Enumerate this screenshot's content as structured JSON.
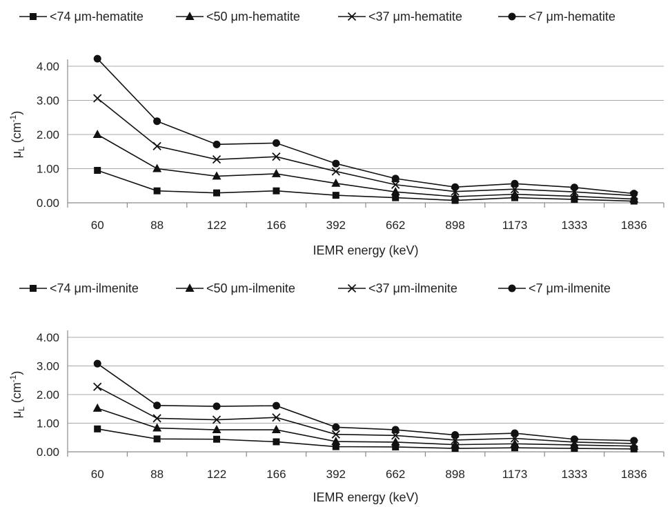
{
  "chart_data": [
    {
      "type": "line",
      "categories": [
        "60",
        "88",
        "122",
        "166",
        "392",
        "662",
        "898",
        "1173",
        "1333",
        "1836"
      ],
      "xlabel": "IEMR energy (keV)",
      "ylabel": "μL (cm-1)",
      "ylabel_main": "μ",
      "ylabel_sub": "L",
      "ylabel_rest": " (cm",
      "ylabel_sup": "-1",
      "ylabel_end": ")",
      "ylim": [
        0,
        4
      ],
      "yticks": [
        "0.00",
        "1.00",
        "2.00",
        "3.00",
        "4.00"
      ],
      "grid": true,
      "legend_position": "top",
      "series": [
        {
          "name": "<74 μm-hematite",
          "marker": "square",
          "values": [
            0.95,
            0.35,
            0.29,
            0.35,
            0.22,
            0.15,
            0.07,
            0.15,
            0.1,
            0.05
          ]
        },
        {
          "name": "<50 μm-hematite",
          "marker": "triangle",
          "values": [
            2.0,
            1.0,
            0.78,
            0.85,
            0.57,
            0.32,
            0.18,
            0.25,
            0.19,
            0.11
          ]
        },
        {
          "name": "<37 μm-hematite",
          "marker": "cross",
          "values": [
            3.06,
            1.66,
            1.27,
            1.35,
            0.92,
            0.53,
            0.33,
            0.4,
            0.32,
            0.21
          ]
        },
        {
          "name": "<7 μm-hematite",
          "marker": "circle",
          "values": [
            4.22,
            2.39,
            1.71,
            1.75,
            1.15,
            0.71,
            0.46,
            0.56,
            0.45,
            0.27
          ]
        }
      ]
    },
    {
      "type": "line",
      "categories": [
        "60",
        "88",
        "122",
        "166",
        "392",
        "662",
        "898",
        "1173",
        "1333",
        "1836"
      ],
      "xlabel": "IEMR energy (keV)",
      "ylabel": "μL (cm-1)",
      "ylabel_main": "μ",
      "ylabel_sub": "L",
      "ylabel_rest": " (cm",
      "ylabel_sup": "-1",
      "ylabel_end": ")",
      "ylim": [
        0,
        4
      ],
      "yticks": [
        "0.00",
        "1.00",
        "2.00",
        "3.00",
        "4.00"
      ],
      "grid": true,
      "legend_position": "top",
      "series": [
        {
          "name": "<74 μm-ilmenite",
          "marker": "square",
          "values": [
            0.8,
            0.45,
            0.44,
            0.35,
            0.18,
            0.17,
            0.12,
            0.14,
            0.12,
            0.1
          ]
        },
        {
          "name": "<50 μm-ilmenite",
          "marker": "triangle",
          "values": [
            1.52,
            0.83,
            0.77,
            0.77,
            0.36,
            0.34,
            0.25,
            0.28,
            0.24,
            0.2
          ]
        },
        {
          "name": "<37 μm-ilmenite",
          "marker": "cross",
          "values": [
            2.27,
            1.17,
            1.12,
            1.2,
            0.61,
            0.57,
            0.41,
            0.47,
            0.34,
            0.29
          ]
        },
        {
          "name": "<7 μm-ilmenite",
          "marker": "circle",
          "values": [
            3.08,
            1.62,
            1.59,
            1.61,
            0.86,
            0.77,
            0.59,
            0.65,
            0.44,
            0.39
          ]
        }
      ]
    }
  ]
}
